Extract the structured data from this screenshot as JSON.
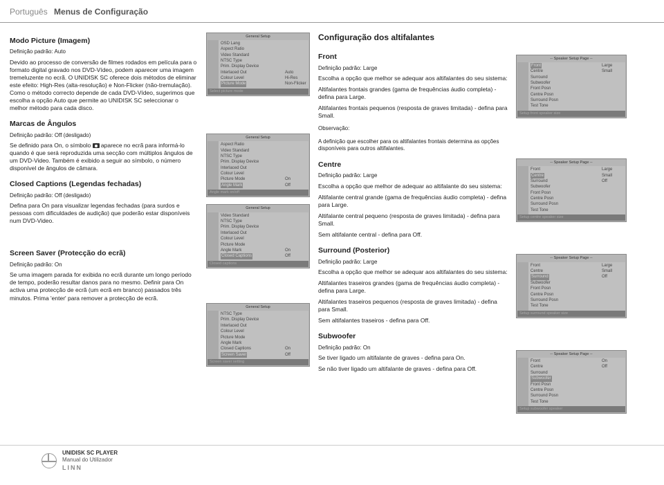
{
  "header": {
    "lang": "Português",
    "title": "Menus de Configuração"
  },
  "col1": {
    "s1": {
      "h": "Modo Picture (Imagem)",
      "def": "Definição padrão: Auto",
      "p1": "Devido ao processo de conversão de filmes rodados em película para o formato digital gravado nos DVD-Vídeo, podem aparecer uma imagem tremeluzente no ecrã. O UNIDISK SC oferece dois métodos de eliminar este efeito: High-Res (alta-resolução) e Non-Flicker (não-tremulação). Como o método correcto depende de cada DVD-Vídeo, sugerimos que escolha a opção Auto que permite ao UNIDISK SC seleccionar o melhor método para cada disco."
    },
    "s2": {
      "h": "Marcas de Ângulos",
      "def": "Definição padrão: Off (desligado)",
      "p1a": "Se definido para On, o símbolo ",
      "p1b": " aparece no ecrã para informá-lo quando é que será reproduzida uma secção com múltiplos ângulos de um DVD-Video. Também é exibido a seguir ao símbolo, o número disponível de ângulos de câmara."
    },
    "s3": {
      "h": "Closed Captions (Legendas fechadas)",
      "def": "Definição padrão: Off (desligado)",
      "p1": "Defina para On para visualizar legendas fechadas (para surdos e pessoas com dificuldades de audição) que poderão estar disponíveis num DVD-Video."
    },
    "s4": {
      "h": "Screen Saver (Protecção do ecrã)",
      "def": "Definição padrão: On",
      "p1": "Se uma imagem parada for exibida no ecrã durante um longo período de tempo, poderão resultar danos para no mesmo. Definir para On activa uma protecção de ecrã (um ecrã em branco) passados três minutos. Prima 'enter' para remover a protecção de ecrã."
    }
  },
  "menus": {
    "m1": {
      "hdr": "General Setup",
      "items": [
        "OSD Lang",
        "Aspect Ratio",
        "Video Standard",
        "NTSC Type",
        "Prim. Display Device",
        "Interlaced Out",
        "Colour Level",
        "Picture Mode"
      ],
      "right": [
        "",
        "",
        "",
        "",
        "",
        "Auto",
        "Hi-Res",
        "Non-Flicker"
      ],
      "sel": "Picture Mode",
      "cap": "Select picture mode"
    },
    "m2": {
      "hdr": "General Setup",
      "items": [
        "Aspect Ratio",
        "Video Standard",
        "NTSC Type",
        "Prim. Display Device",
        "Interlaced Out",
        "Colour Level",
        "Picture Mode",
        "Angle Mark"
      ],
      "right": [
        "",
        "",
        "",
        "",
        "",
        "",
        "On",
        "Off"
      ],
      "sel": "Angle Mark",
      "cap": "Angle mark on/off"
    },
    "m3": {
      "hdr": "General Setup",
      "items": [
        "Video Standard",
        "NTSC Type",
        "Prim. Display Device",
        "Interlaced Out",
        "Colour Level",
        "Picture Mode",
        "Angle Mark",
        "Closed Captions"
      ],
      "right": [
        "",
        "",
        "",
        "",
        "",
        "",
        "On",
        "Off"
      ],
      "sel": "Closed Captions",
      "cap": "Closed captions"
    },
    "m4": {
      "hdr": "General Setup",
      "items": [
        "NTSC Type",
        "Prim. Display Device",
        "Interlaced Out",
        "Colour Level",
        "Picture Mode",
        "Angle Mark",
        "Closed Captions",
        "Screen Saver"
      ],
      "right": [
        "",
        "",
        "",
        "",
        "",
        "",
        "On",
        "Off"
      ],
      "sel": "Screen Saver",
      "cap": "Screen saver setting"
    },
    "sp1": {
      "hdr": "-- Speaker Setup Page --",
      "items": [
        "Front",
        "Centre",
        "Surround",
        "Subwoofer",
        "Front Posn",
        "Centre Posn",
        "Surround Posn",
        "Test Tone"
      ],
      "right": [
        "Large",
        "Small"
      ],
      "sel": "Front",
      "cap": "Setup front speaker size"
    },
    "sp2": {
      "hdr": "-- Speaker Setup Page --",
      "items": [
        "Front",
        "Centre",
        "Surround",
        "Subwoofer",
        "Front Posn",
        "Centre Posn",
        "Surround Posn",
        "Test Tone"
      ],
      "right": [
        "Large",
        "Small",
        "Off"
      ],
      "sel": "Centre",
      "cap": "Setup centre speaker size"
    },
    "sp3": {
      "hdr": "-- Speaker Setup Page --",
      "items": [
        "Front",
        "Centre",
        "Surround",
        "Subwoofer",
        "Front Posn",
        "Centre Posn",
        "Surround Posn",
        "Test Tone"
      ],
      "right": [
        "Large",
        "Small",
        "Off"
      ],
      "sel": "Surround",
      "cap": "Setup surround speaker size"
    },
    "sp4": {
      "hdr": "-- Speaker Setup Page --",
      "items": [
        "Front",
        "Centre",
        "Surround",
        "Subwoofer",
        "Front Posn",
        "Centre Posn",
        "Surround Posn",
        "Test Tone"
      ],
      "right": [
        "On",
        "Off"
      ],
      "sel": "Subwoofer",
      "cap": "Setup subwoofer speaker"
    }
  },
  "col3": {
    "title": "Configuração dos altifalantes",
    "front": {
      "h": "Front",
      "def": "Definição padrão: Large",
      "p1": "Escolha a opção que melhor se adequar aos altifalantes do seu sistema:",
      "p2": "Altifalantes frontais grandes (gama de frequências áudio completa) - defina para Large.",
      "p3": "Altifalantes frontais pequenos (resposta de graves limitada) - defina para Small.",
      "obs1": "Observação:",
      "obs2": "A definição que escolher para os altifalantes frontais determina as opções disponíveis para outros altifalantes."
    },
    "centre": {
      "h": "Centre",
      "def": "Definição padrão: Large",
      "p1": "Escolha a opção que melhor de adequar ao altifalante do seu sistema:",
      "p2": "Altifalante central grande (gama de frequências áudio completa) - defina para Large.",
      "p3": "Altifalante central pequeno (resposta de graves limitada) - defina para Small.",
      "p4": "Sem altifalante central - defina para Off."
    },
    "surround": {
      "h": "Surround (Posterior)",
      "def": "Definição padrão: Large",
      "p1": "Escolha a opção que melhor se adequar aos altifalantes do seu sistema:",
      "p2": "Altifalantes traseiros grandes (gama de frequências áudio completa) - defina para Large.",
      "p3": "Altifalantes traseiros pequenos (resposta de graves limitada) - defina para Small.",
      "p4": "Sem altifalantes traseiros - defina para Off."
    },
    "sub": {
      "h": "Subwoofer",
      "def": "Definição padrão: On",
      "p1": "Se tiver ligado um altifalante de graves - defina para On.",
      "p2": "Se não tiver ligado um altifalante de graves - defina para Off."
    }
  },
  "footer": {
    "l1": "UNIDISK SC PLAYER",
    "l2": "Manual do Utilizador",
    "brand": "LINN"
  }
}
